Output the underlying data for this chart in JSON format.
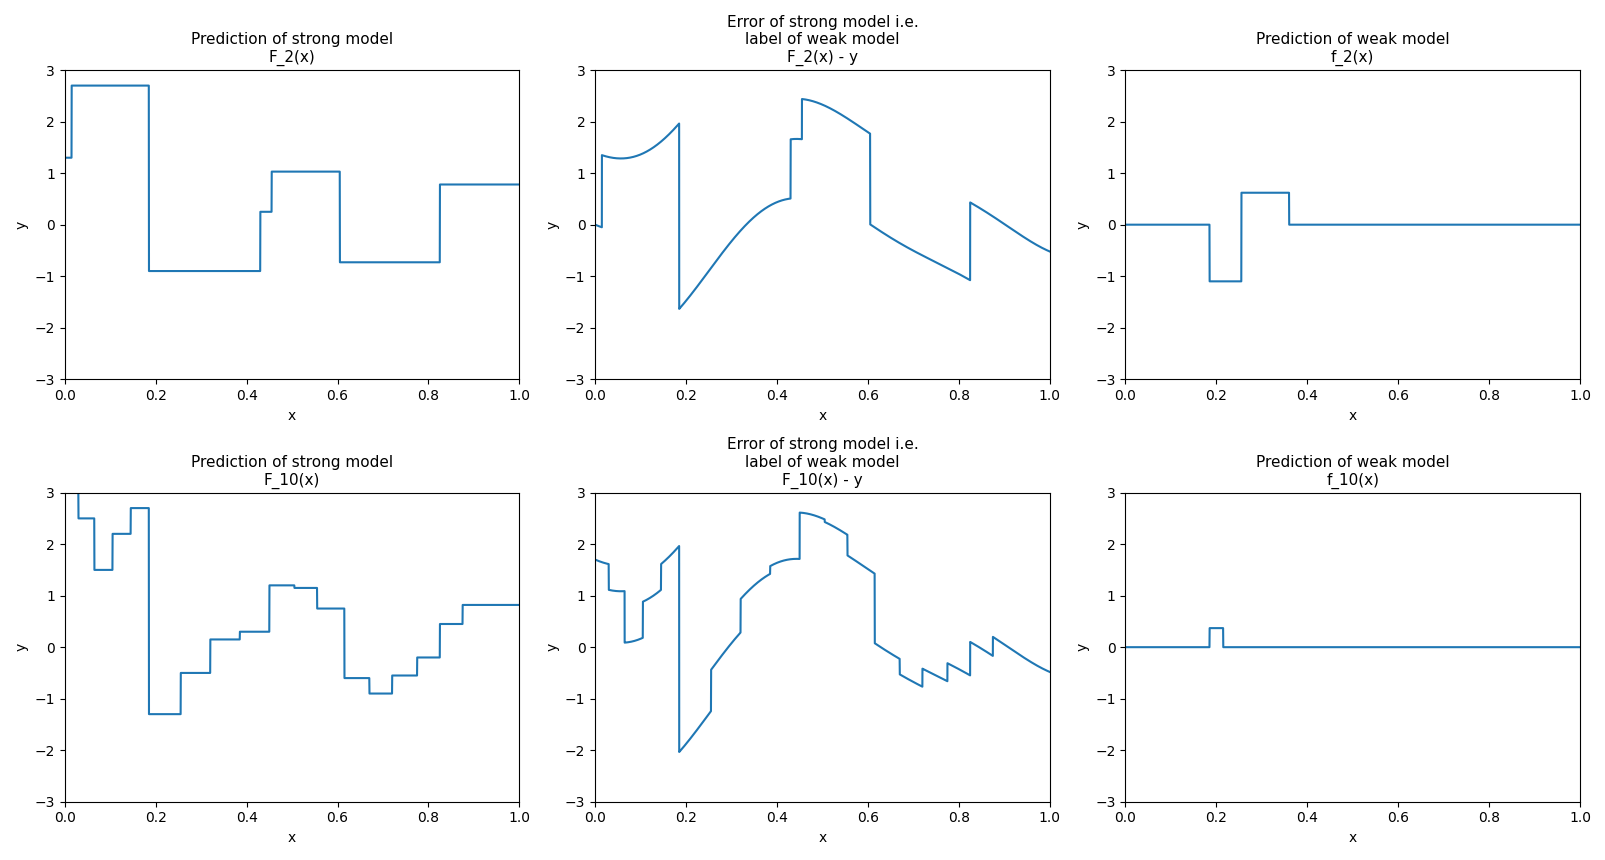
{
  "line_color": "#1f77b4",
  "ylim": [
    -3,
    3
  ],
  "xlim": [
    0.0,
    1.0
  ],
  "xlabel": "x",
  "ylabel": "y",
  "titles": [
    [
      "Prediction of strong model\nF_2(x)",
      "Error of strong model i.e.\nlabel of weak model\nF_2(x) - y",
      "Prediction of weak model\nf_2(x)"
    ],
    [
      "Prediction of strong model\nF_10(x)",
      "Error of strong model i.e.\nlabel of weak model\nF_10(x) - y",
      "Prediction of weak model\nf_10(x)"
    ]
  ],
  "figsize": [
    16.06,
    8.6
  ],
  "dpi": 100,
  "title_fontsize": 11
}
